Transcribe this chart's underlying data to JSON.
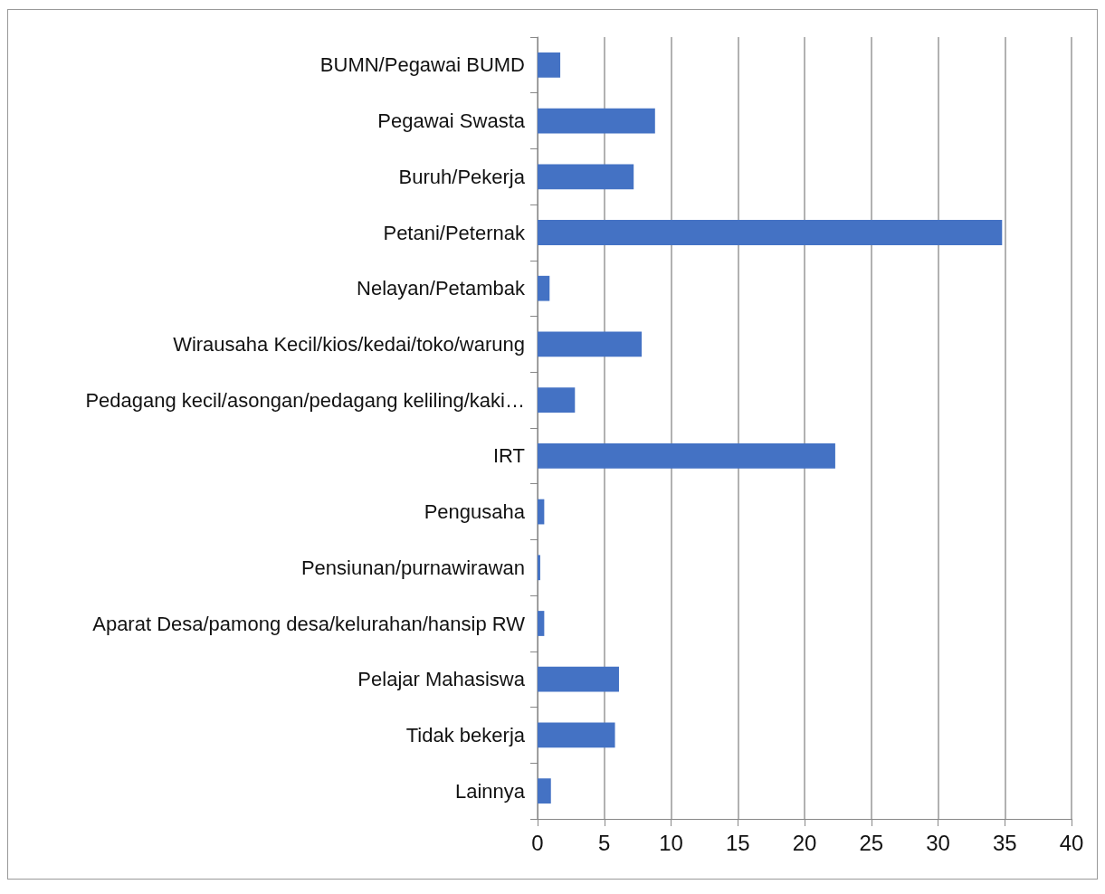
{
  "chart_data": {
    "type": "bar",
    "orientation": "horizontal",
    "categories": [
      "BUMN/Pegawai BUMD",
      "Pegawai Swasta",
      "Buruh/Pekerja",
      "Petani/Peternak",
      "Nelayan/Petambak",
      "Wirausaha Kecil/kios/kedai/toko/warung",
      "Pedagang kecil/asongan/pedagang keliling/kaki…",
      "IRT",
      "Pengusaha",
      "Pensiunan/purnawirawan",
      "Aparat Desa/pamong desa/kelurahan/hansip RW",
      "Pelajar Mahasiswa",
      "Tidak bekerja",
      "Lainnya"
    ],
    "values": [
      1.7,
      8.8,
      7.2,
      34.8,
      0.9,
      7.8,
      2.8,
      22.3,
      0.5,
      0.2,
      0.5,
      6.1,
      5.8,
      1.0
    ],
    "color": "#4472c4",
    "xlim": [
      0,
      40
    ],
    "xticks": [
      0,
      5,
      10,
      15,
      20,
      25,
      30,
      35,
      40
    ],
    "grid": "x"
  }
}
